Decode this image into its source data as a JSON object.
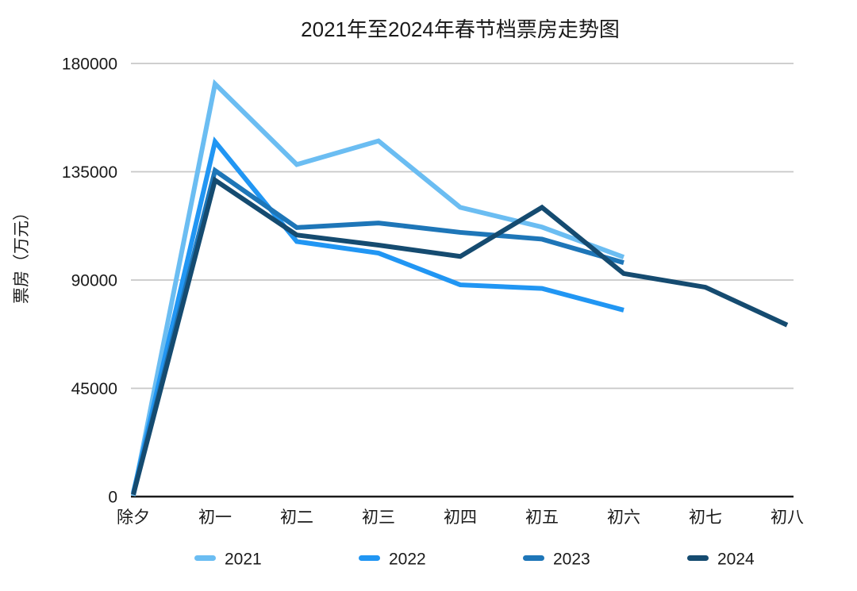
{
  "chart_data": {
    "type": "line",
    "title": "2021年至2024年春节档票房走势图",
    "xlabel": "",
    "ylabel": "票房（万元）",
    "categories": [
      "除夕",
      "初一",
      "初二",
      "初三",
      "初四",
      "初五",
      "初六",
      "初七",
      "初八"
    ],
    "series": [
      {
        "name": "2021",
        "color": "#6BBDF2",
        "values": [
          300,
          171500,
          138000,
          147800,
          120200,
          112000,
          99500,
          null,
          null
        ]
      },
      {
        "name": "2022",
        "color": "#2196F3",
        "values": [
          1500,
          147500,
          106000,
          101200,
          88000,
          86500,
          77500,
          null,
          null
        ]
      },
      {
        "name": "2023",
        "color": "#1E76B8",
        "values": [
          1000,
          135500,
          111800,
          113700,
          109800,
          107000,
          97200,
          null,
          null
        ]
      },
      {
        "name": "2024",
        "color": "#154B70",
        "values": [
          800,
          131500,
          108700,
          104500,
          99800,
          120200,
          92700,
          87000,
          71300
        ]
      }
    ],
    "yticks": [
      0,
      45000,
      90000,
      135000,
      180000
    ],
    "ylim": [
      0,
      180000
    ],
    "grid": true,
    "legend_position": "bottom",
    "legend_labels": [
      "2021",
      "2022",
      "2023",
      "2024"
    ]
  }
}
